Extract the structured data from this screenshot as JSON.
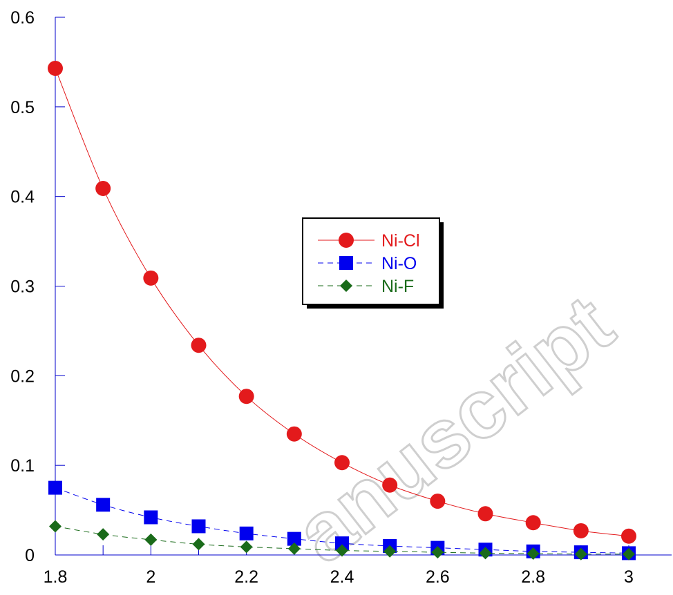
{
  "chart_data": {
    "type": "line",
    "title": "",
    "xlabel": "",
    "ylabel": "",
    "xlim": [
      1.8,
      3.0
    ],
    "ylim": [
      0,
      0.6
    ],
    "x": [
      1.8,
      1.9,
      2.0,
      2.1,
      2.2,
      2.3,
      2.4,
      2.5,
      2.6,
      2.7,
      2.8,
      2.9,
      3.0
    ],
    "x_ticks": [
      "1.8",
      "2",
      "2.2",
      "2.4",
      "2.6",
      "2.8",
      "3"
    ],
    "y_ticks": [
      "0",
      "0.1",
      "0.2",
      "0.3",
      "0.4",
      "0.5",
      "0.6"
    ],
    "grid": false,
    "legend_position": "center",
    "series": [
      {
        "name": "Ni-Cl",
        "color": "#e31a1c",
        "marker": "circle",
        "line": "solid",
        "values": [
          0.543,
          0.409,
          0.309,
          0.234,
          0.177,
          0.135,
          0.103,
          0.078,
          0.06,
          0.046,
          0.036,
          0.027,
          0.021
        ]
      },
      {
        "name": "Ni-O",
        "color": "#0000ee",
        "marker": "square",
        "line": "dashed",
        "values": [
          0.075,
          0.056,
          0.042,
          0.032,
          0.024,
          0.018,
          0.013,
          0.01,
          0.008,
          0.006,
          0.004,
          0.003,
          0.002
        ]
      },
      {
        "name": "Ni-F",
        "color": "#1a6b1a",
        "marker": "diamond",
        "line": "dashed",
        "values": [
          0.032,
          0.023,
          0.017,
          0.012,
          0.009,
          0.007,
          0.005,
          0.004,
          0.003,
          0.002,
          0.0015,
          0.001,
          0.001
        ]
      }
    ],
    "axis_color": "#0000cc"
  },
  "watermark": {
    "text": "anuscript"
  }
}
